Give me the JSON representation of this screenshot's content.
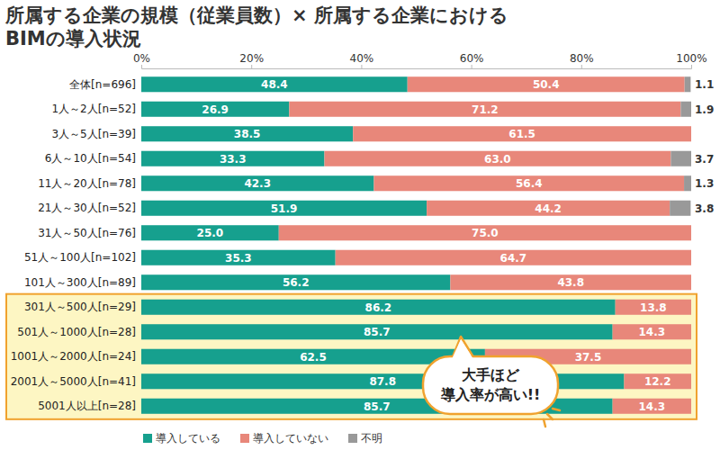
{
  "chart_data": {
    "type": "bar",
    "orientation": "horizontal",
    "stacked": true,
    "data_labels": true,
    "grid": false,
    "legend": "bottom",
    "title": [
      "所属する企業の規模（従業員数）× 所属する企業における",
      "BIMの導入状況"
    ],
    "annotation": [
      "大手ほど",
      "導入率が高い!!"
    ],
    "categories": [
      "全体[n=696]",
      "1人～2人[n=52]",
      "3人～5人[n=39]",
      "6人～10人[n=54]",
      "11人～20人[n=78]",
      "21人～30人[n=52]",
      "31人～50人[n=76]",
      "51人～100人[n=102]",
      "101人～300人[n=89]",
      "301人～500人[n=29]",
      "501人～1000人[n=28]",
      "1001人～2000人[n=24]",
      "2001人～5000人[n=41]",
      "5001人以上[n=28]"
    ],
    "xlim": [
      0,
      100
    ],
    "xticks": [
      {
        "value": 0,
        "label": "0%"
      },
      {
        "value": 20,
        "label": "20%"
      },
      {
        "value": 40,
        "label": "40%"
      },
      {
        "value": 60,
        "label": "60%"
      },
      {
        "value": 80,
        "label": "80%"
      },
      {
        "value": 100,
        "label": "100%"
      }
    ],
    "series": [
      {
        "name": "導入している",
        "color": "#16a08e",
        "values": [
          48.4,
          26.9,
          38.5,
          33.3,
          42.3,
          51.9,
          25.0,
          35.3,
          56.2,
          86.2,
          85.7,
          62.5,
          87.8,
          85.7
        ],
        "value_labels": [
          "48.4",
          "26.9",
          "38.5",
          "33.3",
          "42.3",
          "51.9",
          "25.0",
          "35.3",
          "56.2",
          "86.2",
          "85.7",
          "62.5",
          "87.8",
          "85.7"
        ]
      },
      {
        "name": "導入していない",
        "color": "#e8877a",
        "values": [
          50.4,
          71.2,
          61.5,
          63.0,
          56.4,
          44.2,
          75.0,
          64.7,
          43.8,
          13.8,
          14.3,
          37.5,
          12.2,
          14.3
        ],
        "value_labels": [
          "50.4",
          "71.2",
          "61.5",
          "63.0",
          "56.4",
          "44.2",
          "75.0",
          "64.7",
          "43.8",
          "13.8",
          "14.3",
          "37.5",
          "12.2",
          "14.3"
        ]
      },
      {
        "name": "不明",
        "color": "#999999",
        "values": [
          1.1,
          1.9,
          null,
          3.7,
          1.3,
          3.8,
          null,
          null,
          null,
          null,
          null,
          null,
          null,
          null
        ],
        "value_labels": [
          "1.1",
          "1.9",
          null,
          "3.7",
          "1.3",
          "3.8",
          null,
          null,
          null,
          null,
          null,
          null,
          null,
          null
        ]
      }
    ]
  }
}
